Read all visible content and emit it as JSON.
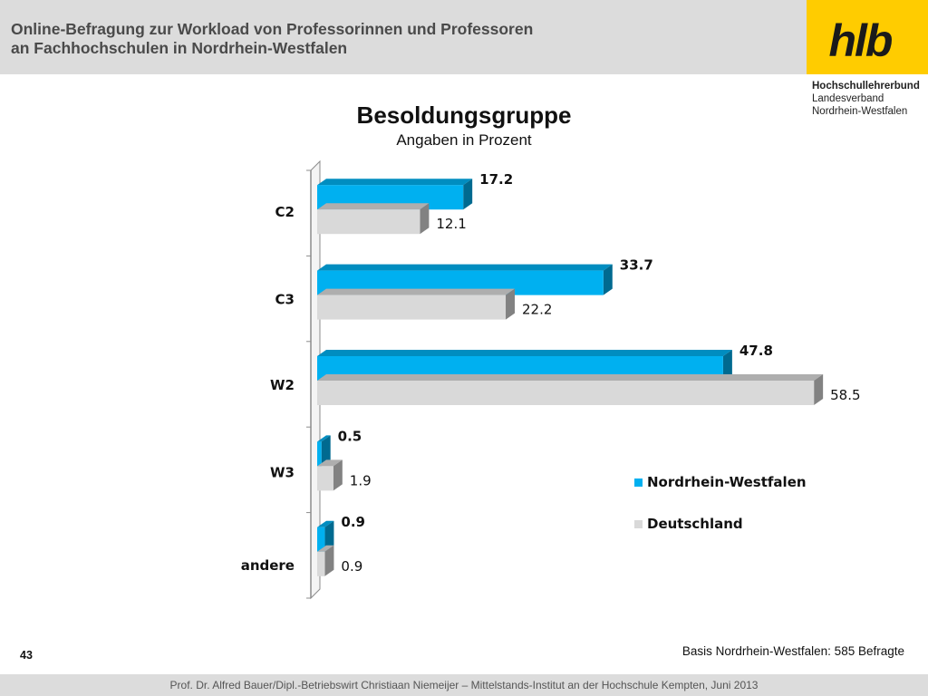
{
  "header": {
    "title_line1": "Online-Befragung  zur  Workload von Professorinnen und Professoren",
    "title_line2": "an Fachhochschulen in Nordrhein-Westfalen"
  },
  "logo": {
    "text": "hlb",
    "org_name": "Hochschullehrerbund",
    "org_line2": "Landesverband",
    "org_line3": "Nordrhein-Westfalen"
  },
  "chart_data": {
    "type": "bar",
    "orientation": "horizontal",
    "style": "3d",
    "title": "Besoldungsgruppe",
    "subtitle": "Angaben in Prozent",
    "categories": [
      "C2",
      "C3",
      "W2",
      "W3",
      "andere"
    ],
    "series": [
      {
        "name": "Nordrhein-Westfalen",
        "values": [
          17.2,
          33.7,
          47.8,
          0.5,
          0.9
        ],
        "color": "#00b0f0",
        "label_bold": true
      },
      {
        "name": "Deutschland",
        "values": [
          12.1,
          22.2,
          58.5,
          1.9,
          0.9
        ],
        "color": "#d9d9d9",
        "label_bold": false
      }
    ],
    "value_labels": [
      [
        "17.2",
        "33.7",
        "47.8",
        "0.5",
        "0.9"
      ],
      [
        "12.1",
        "22.2",
        "58.5",
        "1.9",
        "0.9"
      ]
    ],
    "xlim": [
      0,
      60
    ],
    "grid": false,
    "legend_position": "right"
  },
  "basis_note": "Basis Nordrhein-Westfalen: 585 Befragte",
  "page_number": "43",
  "footer": "Prof. Dr. Alfred Bauer/Dipl.-Betriebswirt Christiaan Niemeijer – Mittelstands-Institut an der Hochschule Kempten, Juni 2013"
}
